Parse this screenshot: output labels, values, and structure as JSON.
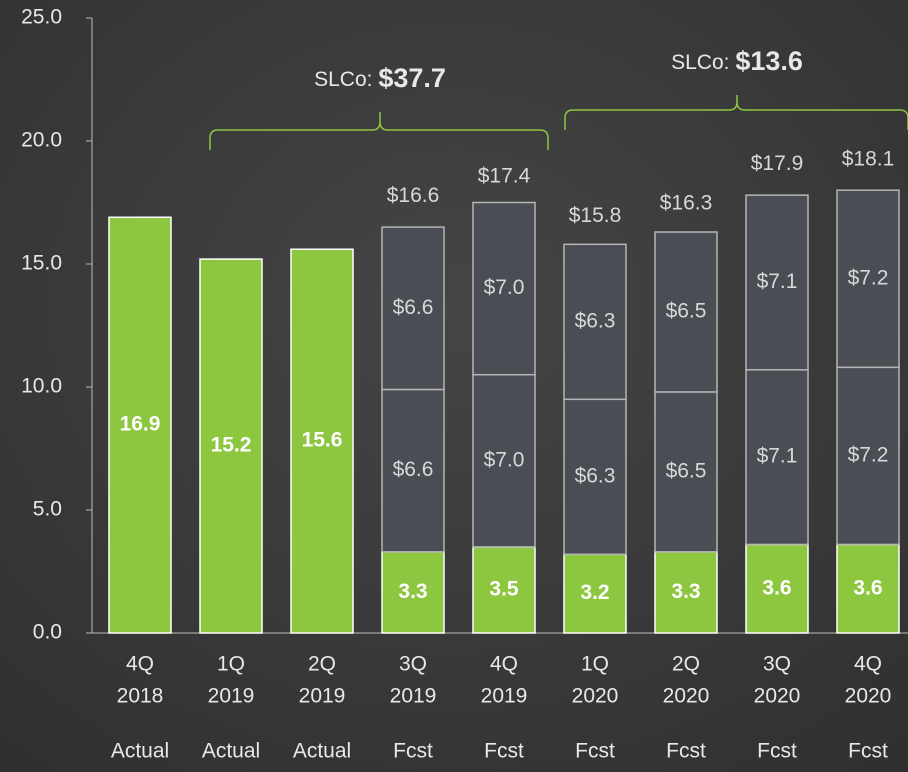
{
  "chart_data": {
    "type": "stacked-bar",
    "categories": [
      [
        "4Q",
        "2018"
      ],
      [
        "1Q",
        "2019"
      ],
      [
        "2Q",
        "2019"
      ],
      [
        "3Q",
        "2019"
      ],
      [
        "4Q",
        "2019"
      ],
      [
        "1Q",
        "2020"
      ],
      [
        "2Q",
        "2020"
      ],
      [
        "3Q",
        "2020"
      ],
      [
        "4Q",
        "2020"
      ]
    ],
    "status": [
      "Actual",
      "Actual",
      "Actual",
      "Fcst",
      "Fcst",
      "Fcst",
      "Fcst",
      "Fcst",
      "Fcst"
    ],
    "series": [
      {
        "color": "#8dc63f",
        "values": [
          16.9,
          15.2,
          15.6,
          3.3,
          3.5,
          3.2,
          3.3,
          3.6,
          3.6
        ]
      },
      {
        "color": "#4a4d53",
        "values": [
          null,
          null,
          null,
          6.6,
          7.0,
          6.3,
          6.5,
          7.1,
          7.2
        ],
        "value_labels": [
          null,
          null,
          null,
          "$6.6",
          "$7.0",
          "$6.3",
          "$6.5",
          "$7.1",
          "$7.2"
        ]
      },
      {
        "color": "#4a4d53",
        "values": [
          null,
          null,
          null,
          6.6,
          7.0,
          6.3,
          6.5,
          7.1,
          7.2
        ],
        "value_labels": [
          null,
          null,
          null,
          "$6.6",
          "$7.0",
          "$6.3",
          "$6.5",
          "$7.1",
          "$7.2"
        ]
      }
    ],
    "totals": {
      "values": [
        null,
        null,
        null,
        16.6,
        17.4,
        15.8,
        16.3,
        17.9,
        18.1
      ],
      "value_labels": [
        null,
        null,
        null,
        "$16.6",
        "$17.4",
        "$15.8",
        "$16.3",
        "$17.9",
        "$18.1"
      ]
    },
    "annotations": [
      {
        "text": "SLCo:",
        "value": "$37.7"
      },
      {
        "text": "SLCo:",
        "value": "$13.6"
      }
    ],
    "ylim": [
      0,
      25
    ],
    "yticks": [
      {
        "value": 0,
        "label": "0.0"
      },
      {
        "value": 5,
        "label": "5.0"
      },
      {
        "value": 10,
        "label": "10.0"
      },
      {
        "value": 15,
        "label": "15.0"
      },
      {
        "value": 20,
        "label": "20.0"
      },
      {
        "value": 25,
        "label": "25.0"
      }
    ]
  }
}
